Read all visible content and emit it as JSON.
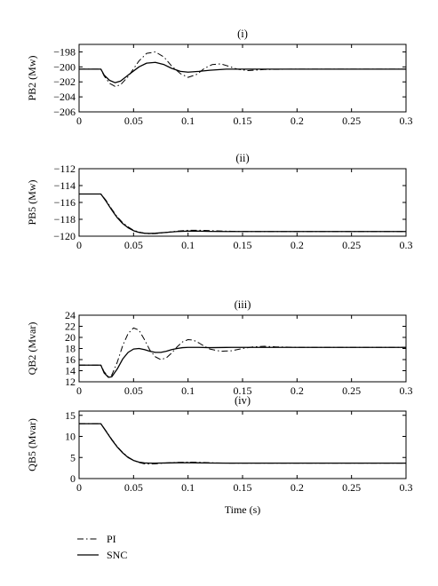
{
  "legend": [
    {
      "name": "PI",
      "style": "dashdot"
    },
    {
      "name": "SNC",
      "style": "solid"
    }
  ],
  "chart_data": [
    {
      "type": "line",
      "title": "(i)",
      "xlabel": "",
      "ylabel": "PB2 (Mw)",
      "xlim": [
        0,
        0.3
      ],
      "ylim": [
        -206,
        -197
      ],
      "xticks": [
        0,
        0.05,
        0.1,
        0.15,
        0.2,
        0.25,
        0.3
      ],
      "xtick_labels": [
        "0",
        "0.05",
        "0.1",
        "0.15",
        "0.2",
        "0.25",
        "0.3"
      ],
      "yticks": [
        -206,
        -204,
        -202,
        -200,
        -198
      ],
      "ytick_labels": [
        "−206",
        "−204",
        "−202",
        "−200",
        "−198"
      ],
      "series": [
        {
          "name": "PI",
          "style": "dashdot",
          "x": [
            0,
            0.02,
            0.023,
            0.028,
            0.033,
            0.038,
            0.045,
            0.055,
            0.062,
            0.07,
            0.078,
            0.085,
            0.093,
            0.1,
            0.108,
            0.115,
            0.122,
            0.13,
            0.137,
            0.145,
            0.155,
            0.17,
            0.2,
            0.25,
            0.3
          ],
          "y": [
            -200.3,
            -200.3,
            -201.2,
            -202.2,
            -202.6,
            -202.4,
            -201.3,
            -199.2,
            -198.2,
            -198.0,
            -198.7,
            -199.9,
            -200.9,
            -201.4,
            -201.0,
            -200.2,
            -199.7,
            -199.6,
            -199.9,
            -200.3,
            -200.5,
            -200.35,
            -200.3,
            -200.3,
            -200.3
          ]
        },
        {
          "name": "SNC",
          "style": "solid",
          "x": [
            0,
            0.02,
            0.023,
            0.028,
            0.033,
            0.038,
            0.045,
            0.055,
            0.062,
            0.07,
            0.078,
            0.085,
            0.093,
            0.1,
            0.11,
            0.12,
            0.135,
            0.15,
            0.2,
            0.25,
            0.3
          ],
          "y": [
            -200.3,
            -200.3,
            -201.1,
            -201.8,
            -202.1,
            -201.9,
            -201.1,
            -200.0,
            -199.5,
            -199.4,
            -199.7,
            -200.2,
            -200.6,
            -200.7,
            -200.6,
            -200.45,
            -200.3,
            -200.3,
            -200.3,
            -200.3,
            -200.3
          ]
        }
      ]
    },
    {
      "type": "line",
      "title": "(ii)",
      "xlabel": "",
      "ylabel": "PB5 (Mw)",
      "xlim": [
        0,
        0.3
      ],
      "ylim": [
        -120,
        -112
      ],
      "xticks": [
        0,
        0.05,
        0.1,
        0.15,
        0.2,
        0.25,
        0.3
      ],
      "xtick_labels": [
        "0",
        "0.05",
        "0.1",
        "0.15",
        "0.2",
        "0.25",
        "0.3"
      ],
      "yticks": [
        -120,
        -118,
        -116,
        -114,
        -112
      ],
      "ytick_labels": [
        "−120",
        "−118",
        "−116",
        "−114",
        "−112"
      ],
      "series": [
        {
          "name": "PI",
          "style": "dashdot",
          "x": [
            0,
            0.02,
            0.025,
            0.03,
            0.035,
            0.04,
            0.045,
            0.05,
            0.055,
            0.06,
            0.065,
            0.07,
            0.08,
            0.09,
            0.1,
            0.11,
            0.12,
            0.14,
            0.16,
            0.2,
            0.25,
            0.3
          ],
          "y": [
            -115,
            -115,
            -115.8,
            -116.8,
            -117.7,
            -118.4,
            -118.9,
            -119.3,
            -119.5,
            -119.65,
            -119.72,
            -119.7,
            -119.55,
            -119.4,
            -119.3,
            -119.3,
            -119.35,
            -119.42,
            -119.45,
            -119.45,
            -119.45,
            -119.45
          ]
        },
        {
          "name": "SNC",
          "style": "solid",
          "x": [
            0,
            0.02,
            0.025,
            0.03,
            0.035,
            0.04,
            0.045,
            0.05,
            0.055,
            0.06,
            0.065,
            0.07,
            0.08,
            0.09,
            0.1,
            0.11,
            0.12,
            0.14,
            0.16,
            0.2,
            0.25,
            0.3
          ],
          "y": [
            -115,
            -115,
            -115.9,
            -116.9,
            -117.8,
            -118.5,
            -119.0,
            -119.35,
            -119.55,
            -119.65,
            -119.68,
            -119.65,
            -119.55,
            -119.45,
            -119.4,
            -119.4,
            -119.43,
            -119.45,
            -119.45,
            -119.45,
            -119.45,
            -119.45
          ]
        }
      ]
    },
    {
      "type": "line",
      "title": "(iii)",
      "xlabel": "",
      "ylabel": "QB2 (Mvar)",
      "xlim": [
        0,
        0.3
      ],
      "ylim": [
        12,
        24
      ],
      "xticks": [
        0,
        0.05,
        0.1,
        0.15,
        0.2,
        0.25,
        0.3
      ],
      "xtick_labels": [
        "0",
        "0.05",
        "0.1",
        "0.15",
        "0.2",
        "0.25",
        "0.3"
      ],
      "yticks": [
        12,
        14,
        16,
        18,
        20,
        22,
        24
      ],
      "ytick_labels": [
        "12",
        "14",
        "16",
        "18",
        "20",
        "22",
        "24"
      ],
      "series": [
        {
          "name": "PI",
          "style": "dashdot",
          "x": [
            0,
            0.02,
            0.023,
            0.027,
            0.03,
            0.035,
            0.04,
            0.045,
            0.05,
            0.055,
            0.06,
            0.065,
            0.07,
            0.075,
            0.08,
            0.085,
            0.09,
            0.095,
            0.1,
            0.105,
            0.11,
            0.115,
            0.12,
            0.13,
            0.14,
            0.15,
            0.16,
            0.17,
            0.18,
            0.2,
            0.25,
            0.3
          ],
          "y": [
            15,
            15,
            13.8,
            12.9,
            13.2,
            15.5,
            18.5,
            20.7,
            21.7,
            21.3,
            19.6,
            17.7,
            16.5,
            16.0,
            16.3,
            17.2,
            18.3,
            19.2,
            19.6,
            19.5,
            19.0,
            18.4,
            17.9,
            17.5,
            17.6,
            18.0,
            18.3,
            18.4,
            18.3,
            18.2,
            18.2,
            18.2
          ]
        },
        {
          "name": "SNC",
          "style": "solid",
          "x": [
            0,
            0.02,
            0.023,
            0.027,
            0.03,
            0.035,
            0.04,
            0.045,
            0.05,
            0.055,
            0.06,
            0.065,
            0.07,
            0.075,
            0.08,
            0.085,
            0.09,
            0.095,
            0.1,
            0.11,
            0.12,
            0.14,
            0.16,
            0.2,
            0.25,
            0.3
          ],
          "y": [
            15,
            15,
            13.6,
            12.8,
            12.9,
            14.3,
            16.1,
            17.3,
            17.9,
            18.0,
            17.8,
            17.5,
            17.3,
            17.3,
            17.5,
            17.8,
            18.0,
            18.15,
            18.2,
            18.2,
            18.15,
            18.2,
            18.2,
            18.2,
            18.2,
            18.2
          ]
        }
      ]
    },
    {
      "type": "line",
      "title": "(iv)",
      "xlabel": "Time (s)",
      "ylabel": "QB5 (Mvar)",
      "xlim": [
        0,
        0.3
      ],
      "ylim": [
        0,
        16
      ],
      "xticks": [
        0,
        0.05,
        0.1,
        0.15,
        0.2,
        0.25,
        0.3
      ],
      "xtick_labels": [
        "0",
        "0.05",
        "0.1",
        "0.15",
        "0.2",
        "0.25",
        "0.3"
      ],
      "yticks": [
        0,
        5,
        10,
        15
      ],
      "ytick_labels": [
        "0",
        "5",
        "10",
        "15"
      ],
      "series": [
        {
          "name": "PI",
          "style": "dashdot",
          "x": [
            0,
            0.02,
            0.025,
            0.03,
            0.035,
            0.04,
            0.045,
            0.05,
            0.055,
            0.06,
            0.065,
            0.07,
            0.08,
            0.09,
            0.1,
            0.11,
            0.12,
            0.14,
            0.16,
            0.2,
            0.25,
            0.3
          ],
          "y": [
            13,
            13,
            11.2,
            9.3,
            7.6,
            6.2,
            5.1,
            4.3,
            3.8,
            3.5,
            3.45,
            3.5,
            3.7,
            3.85,
            3.9,
            3.85,
            3.75,
            3.65,
            3.65,
            3.65,
            3.65,
            3.65
          ]
        },
        {
          "name": "SNC",
          "style": "solid",
          "x": [
            0,
            0.02,
            0.025,
            0.03,
            0.035,
            0.04,
            0.045,
            0.05,
            0.055,
            0.06,
            0.065,
            0.07,
            0.08,
            0.09,
            0.1,
            0.11,
            0.12,
            0.14,
            0.16,
            0.2,
            0.25,
            0.3
          ],
          "y": [
            13,
            13,
            11.1,
            9.2,
            7.5,
            6.1,
            5.0,
            4.3,
            3.9,
            3.7,
            3.65,
            3.65,
            3.7,
            3.75,
            3.75,
            3.72,
            3.68,
            3.65,
            3.65,
            3.65,
            3.65,
            3.65
          ]
        }
      ]
    }
  ]
}
